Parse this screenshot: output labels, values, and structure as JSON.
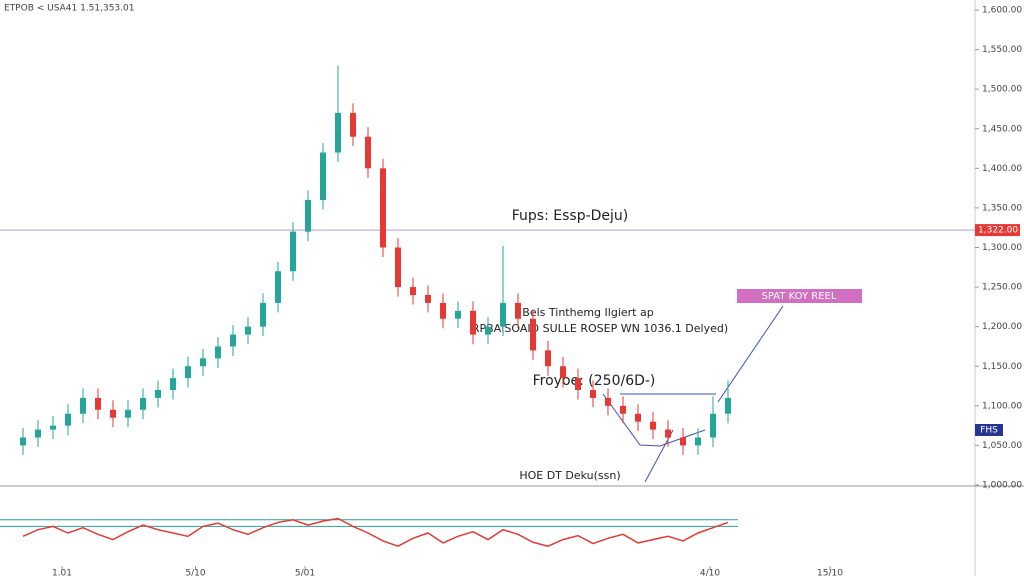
{
  "chart_data": {
    "type": "candlestick",
    "title": "ETPOB < USA41 1.51,353.01",
    "ohlc": [
      [
        1050,
        1072,
        1038,
        1060
      ],
      [
        1060,
        1082,
        1048,
        1070
      ],
      [
        1070,
        1087,
        1058,
        1075
      ],
      [
        1075,
        1102,
        1063,
        1090
      ],
      [
        1090,
        1122,
        1078,
        1110
      ],
      [
        1110,
        1122,
        1083,
        1095
      ],
      [
        1095,
        1107,
        1073,
        1085
      ],
      [
        1085,
        1107,
        1073,
        1095
      ],
      [
        1095,
        1122,
        1083,
        1110
      ],
      [
        1110,
        1132,
        1098,
        1120
      ],
      [
        1120,
        1147,
        1108,
        1135
      ],
      [
        1135,
        1162,
        1123,
        1150
      ],
      [
        1150,
        1172,
        1138,
        1160
      ],
      [
        1160,
        1187,
        1148,
        1175
      ],
      [
        1175,
        1202,
        1163,
        1190
      ],
      [
        1190,
        1212,
        1178,
        1200
      ],
      [
        1200,
        1242,
        1188,
        1230
      ],
      [
        1230,
        1282,
        1218,
        1270
      ],
      [
        1270,
        1332,
        1258,
        1320
      ],
      [
        1320,
        1372,
        1308,
        1360
      ],
      [
        1360,
        1432,
        1348,
        1420
      ],
      [
        1420,
        1530,
        1408,
        1470
      ],
      [
        1470,
        1482,
        1428,
        1440
      ],
      [
        1440,
        1452,
        1388,
        1400
      ],
      [
        1400,
        1412,
        1288,
        1300
      ],
      [
        1300,
        1312,
        1238,
        1250
      ],
      [
        1250,
        1262,
        1228,
        1240
      ],
      [
        1240,
        1252,
        1218,
        1230
      ],
      [
        1230,
        1242,
        1198,
        1210
      ],
      [
        1210,
        1232,
        1198,
        1220
      ],
      [
        1220,
        1232,
        1178,
        1190
      ],
      [
        1190,
        1212,
        1178,
        1200
      ],
      [
        1200,
        1302,
        1188,
        1230
      ],
      [
        1230,
        1242,
        1198,
        1210
      ],
      [
        1210,
        1222,
        1158,
        1170
      ],
      [
        1170,
        1182,
        1138,
        1150
      ],
      [
        1150,
        1162,
        1123,
        1135
      ],
      [
        1135,
        1147,
        1108,
        1120
      ],
      [
        1120,
        1132,
        1098,
        1110
      ],
      [
        1110,
        1122,
        1088,
        1100
      ],
      [
        1100,
        1112,
        1078,
        1090
      ],
      [
        1090,
        1102,
        1068,
        1080
      ],
      [
        1080,
        1092,
        1058,
        1070
      ],
      [
        1070,
        1082,
        1048,
        1060
      ],
      [
        1060,
        1072,
        1038,
        1050
      ],
      [
        1050,
        1072,
        1038,
        1060
      ],
      [
        1060,
        1112,
        1048,
        1090
      ],
      [
        1090,
        1132,
        1078,
        1110
      ]
    ],
    "up_color": "#26a69a",
    "down_color": "#e53935",
    "ylim": [
      1000,
      1600
    ],
    "yticks": [
      {
        "value": 1600,
        "label": "1,600.00"
      },
      {
        "value": 1550,
        "label": "1,550.00"
      },
      {
        "value": 1500,
        "label": "1,500.00"
      },
      {
        "value": 1450,
        "label": "1,450.00"
      },
      {
        "value": 1400,
        "label": "1,400.00"
      },
      {
        "value": 1350,
        "label": "1,350.00"
      },
      {
        "value": 1300,
        "label": "1,300.00"
      },
      {
        "value": 1250,
        "label": "1,250.00"
      },
      {
        "value": 1200,
        "label": "1,200.00"
      },
      {
        "value": 1150,
        "label": "1,150.00"
      },
      {
        "value": 1100,
        "label": "1,100.00"
      },
      {
        "value": 1050,
        "label": "1,050.00"
      },
      {
        "value": 1000,
        "label": "1,000.00"
      }
    ],
    "xlim": [
      0,
      65
    ],
    "xticks": [
      {
        "value": 3.6,
        "label": "1.01"
      },
      {
        "value": 12.5,
        "label": "5/10"
      },
      {
        "value": 19.8,
        "label": "5/01"
      },
      {
        "value": 46.8,
        "label": "4/10"
      },
      {
        "value": 54.8,
        "label": "15/10"
      }
    ],
    "level": {
      "value": 1322,
      "label": "1,322.00"
    },
    "annotations": [
      "Fups: Essp-Deju)",
      "Bels Tinthemg Ilgiert ap",
      "RPBAISOAID SULLE ROSEP WN 1036.1 Delyed)",
      "Froyoe: (250/6D-)",
      "HOE DT Deku(ssn)",
      "SPAT KOY REEL",
      "FHS"
    ],
    "indicator": {
      "values": [
        45,
        55,
        60,
        50,
        58,
        48,
        40,
        52,
        62,
        55,
        50,
        45,
        60,
        65,
        55,
        48,
        58,
        66,
        70,
        62,
        68,
        72,
        60,
        50,
        38,
        30,
        42,
        50,
        35,
        45,
        52,
        40,
        55,
        48,
        36,
        30,
        40,
        46,
        34,
        42,
        48,
        35,
        40,
        45,
        38,
        50,
        58,
        66
      ],
      "color": "#e53935",
      "ylim": [
        0,
        100
      ],
      "levels": [
        70,
        60
      ]
    }
  }
}
